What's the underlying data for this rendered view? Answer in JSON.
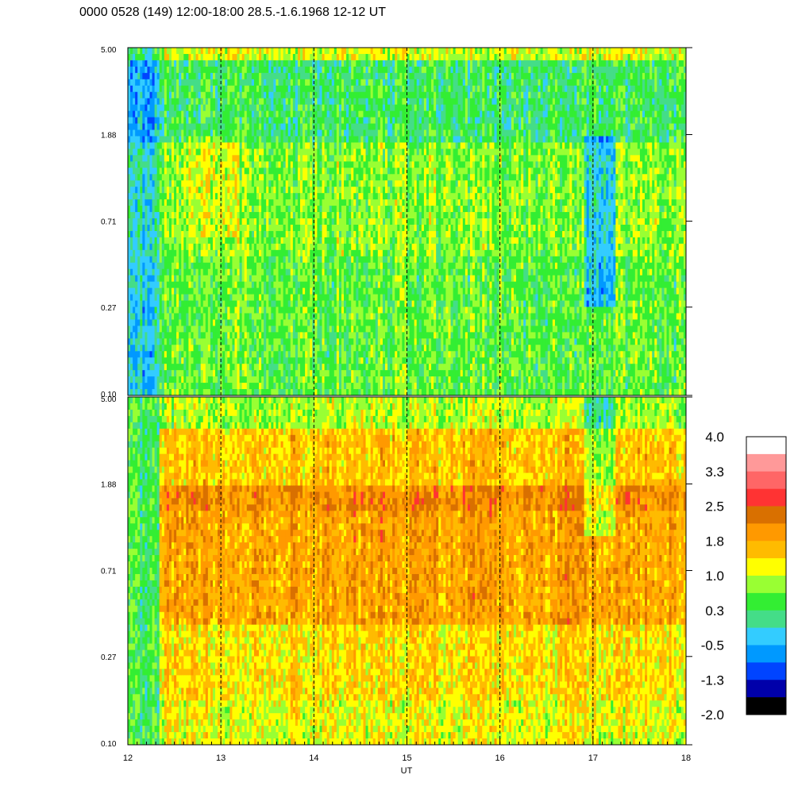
{
  "chart_data": {
    "type": "heatmap",
    "title": "0000 0528 (149) 12:00-18:00 28.5.-1.6.1968  12-12 UT",
    "xlabel": "UT",
    "x_ticks": [
      "12",
      "13",
      "14",
      "15",
      "16",
      "17",
      "18"
    ],
    "xlim": [
      12,
      18
    ],
    "y_ticks": [
      "0.10",
      "0.27",
      "0.71",
      "1.88",
      "5.00"
    ],
    "ylim": [
      0.1,
      5.0
    ],
    "y_scale": "log",
    "dashed_vlines_at": [
      13,
      14,
      15,
      16,
      17
    ],
    "panels": [
      {
        "name": "upper",
        "level": "mostly -0.5 to 1.0 (cyan/green/yellow), dark-blue streaks near 12.0 and 17.0"
      },
      {
        "name": "lower",
        "level": "mostly 1.0 to 2.5 (yellow/orange), orange band near 2.0, green-cyan before 12.35"
      }
    ],
    "colorbar": {
      "labels": [
        "4.0",
        "3.3",
        "2.5",
        "1.8",
        "1.0",
        "0.3",
        "-0.5",
        "-1.3",
        "-2.0"
      ],
      "colors": [
        "#ffffff",
        "#ff9999",
        "#ff6666",
        "#ff3333",
        "#d97000",
        "#ff9900",
        "#ffbb00",
        "#ffff00",
        "#99ff33",
        "#33ee33",
        "#44dd88",
        "#33ccff",
        "#0099ff",
        "#0044ff",
        "#0000aa",
        "#000000"
      ]
    }
  }
}
